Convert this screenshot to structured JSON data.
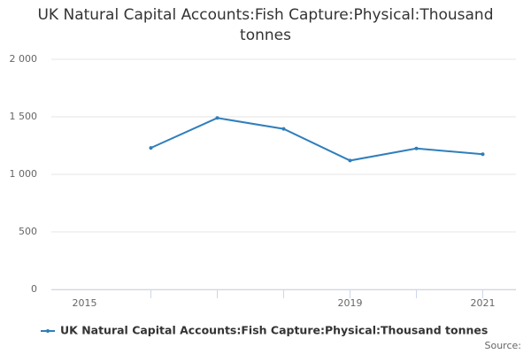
{
  "chart_data": {
    "type": "line",
    "title": "UK Natural Capital Accounts:Fish Capture:Physical:Thousand tonnes",
    "x": [
      2016,
      2017,
      2018,
      2019,
      2020,
      2021
    ],
    "series": [
      {
        "name": "UK Natural Capital Accounts:Fish Capture:Physical:Thousand tonnes",
        "color": "#2f7ebc",
        "values": [
          1230,
          1490,
          1395,
          1120,
          1225,
          1175
        ]
      }
    ],
    "xlim": [
      2014.5,
      2021.5
    ],
    "xticks": [
      2015,
      2019,
      2021
    ],
    "ylim": [
      0,
      2000
    ],
    "yticks": [
      0,
      500,
      {
        "value": 1000,
        "label": "1 000"
      },
      {
        "value": 1500,
        "label": "1 500"
      },
      {
        "value": 2000,
        "label": "2 000"
      }
    ],
    "grid": true,
    "source": "Source:"
  }
}
